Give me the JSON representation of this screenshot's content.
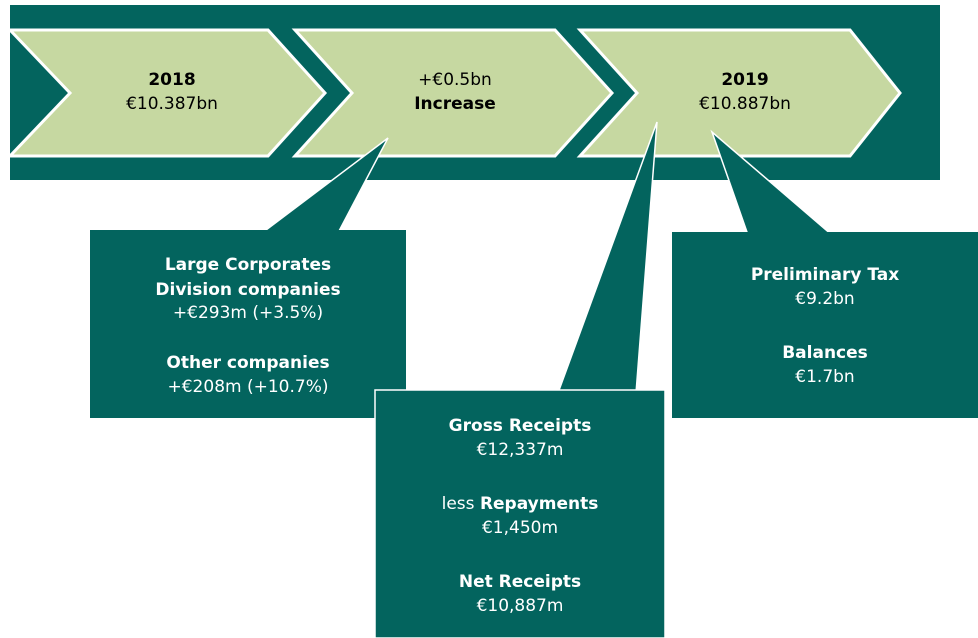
{
  "steps": [
    {
      "title": "2018",
      "value": "€10.387bn"
    },
    {
      "value": "+€0.5bn",
      "title": "Increase"
    },
    {
      "title": "2019",
      "value": "€10.887bn"
    }
  ],
  "callouts": [
    {
      "entries": [
        {
          "label": "Large Corporates",
          "label2": "Division companies",
          "value": "+€293m (+3.5%)"
        },
        {
          "label": "Other companies",
          "value": "+€208m (+10.7%)"
        }
      ]
    },
    {
      "entries": [
        {
          "label": "Gross Receipts",
          "value": "€12,337m"
        },
        {
          "prefix": "less",
          "label": "Repayments",
          "value": "€1,450m"
        },
        {
          "label": "Net Receipts",
          "value": "€10,887m"
        }
      ]
    },
    {
      "entries": [
        {
          "label": "Preliminary Tax",
          "value": "€9.2bn"
        },
        {
          "label": "Balances",
          "value": "€1.7bn"
        }
      ]
    }
  ]
}
